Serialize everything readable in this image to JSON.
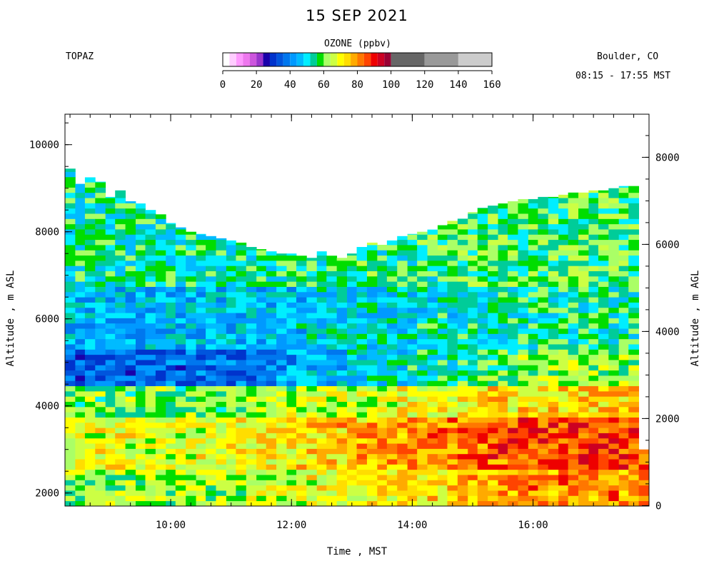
{
  "header": {
    "title": "15 SEP 2021",
    "station": "TOPAZ",
    "location": "Boulder, CO",
    "time_range": "08:15 - 17:55 MST"
  },
  "colorbar": {
    "title": "OZONE (ppbv)",
    "ticks": [
      "0",
      "20",
      "40",
      "60",
      "80",
      "100",
      "120",
      "140",
      "160"
    ],
    "segments": [
      {
        "from": 0,
        "to": 4,
        "color": "#ffffff"
      },
      {
        "from": 4,
        "to": 8,
        "color": "#ffccff"
      },
      {
        "from": 8,
        "to": 12,
        "color": "#ff99ff"
      },
      {
        "from": 12,
        "to": 16,
        "color": "#ee77ee"
      },
      {
        "from": 16,
        "to": 20,
        "color": "#cc55dd"
      },
      {
        "from": 20,
        "to": 24,
        "color": "#9933cc"
      },
      {
        "from": 24,
        "to": 28,
        "color": "#1a00aa"
      },
      {
        "from": 28,
        "to": 32,
        "color": "#0033cc"
      },
      {
        "from": 32,
        "to": 36,
        "color": "#0055dd"
      },
      {
        "from": 36,
        "to": 40,
        "color": "#0077ee"
      },
      {
        "from": 40,
        "to": 44,
        "color": "#0099ff"
      },
      {
        "from": 44,
        "to": 48,
        "color": "#00bbff"
      },
      {
        "from": 48,
        "to": 52,
        "color": "#00eeff"
      },
      {
        "from": 52,
        "to": 56,
        "color": "#00cc99"
      },
      {
        "from": 56,
        "to": 60,
        "color": "#00dd00"
      },
      {
        "from": 60,
        "to": 64,
        "color": "#aaff66"
      },
      {
        "from": 64,
        "to": 68,
        "color": "#ccff44"
      },
      {
        "from": 68,
        "to": 72,
        "color": "#ffff00"
      },
      {
        "from": 72,
        "to": 76,
        "color": "#ffdd00"
      },
      {
        "from": 76,
        "to": 80,
        "color": "#ffaa00"
      },
      {
        "from": 80,
        "to": 84,
        "color": "#ff7700"
      },
      {
        "from": 84,
        "to": 88,
        "color": "#ff4400"
      },
      {
        "from": 88,
        "to": 92,
        "color": "#ee0000"
      },
      {
        "from": 92,
        "to": 96,
        "color": "#cc0022"
      },
      {
        "from": 96,
        "to": 100,
        "color": "#990033"
      },
      {
        "from": 100,
        "to": 120,
        "color": "#666666"
      },
      {
        "from": 120,
        "to": 140,
        "color": "#999999"
      },
      {
        "from": 140,
        "to": 160,
        "color": "#cccccc"
      }
    ]
  },
  "chart_data": {
    "type": "heatmap",
    "xlabel": "Time , MST",
    "ylabel_left": "Altitude , m ASL",
    "ylabel_right": "Altitude , m AGL",
    "x_range_hours": [
      8.25,
      17.92
    ],
    "y_left_range_m": [
      1700,
      10700
    ],
    "y_right_range_m": [
      -10,
      8990
    ],
    "x_ticks": [
      {
        "value": 10,
        "label": "10:00"
      },
      {
        "value": 12,
        "label": "12:00"
      },
      {
        "value": 14,
        "label": "14:00"
      },
      {
        "value": 16,
        "label": "16:00"
      }
    ],
    "y_left_ticks": [
      {
        "value": 2000,
        "label": "2000"
      },
      {
        "value": 4000,
        "label": "4000"
      },
      {
        "value": 6000,
        "label": "6000"
      },
      {
        "value": 8000,
        "label": "8000"
      },
      {
        "value": 10000,
        "label": "10000"
      }
    ],
    "y_right_ticks": [
      {
        "value": 0,
        "label": "0"
      },
      {
        "value": 2000,
        "label": "2000"
      },
      {
        "value": 4000,
        "label": "4000"
      },
      {
        "value": 6000,
        "label": "6000"
      },
      {
        "value": 8000,
        "label": "8000"
      }
    ],
    "profile_times_hours": [
      8.25,
      8.42,
      8.58,
      8.75,
      8.92,
      9.08,
      9.25,
      9.42,
      9.58,
      9.75,
      9.92,
      10.08,
      10.25,
      10.42,
      10.58,
      10.75,
      10.92,
      11.08,
      11.25,
      11.42,
      11.58,
      11.75,
      11.92,
      12.08,
      12.25,
      12.42,
      12.58,
      12.75,
      12.92,
      13.08,
      13.25,
      13.42,
      13.58,
      13.75,
      13.92,
      14.08,
      14.25,
      14.42,
      14.58,
      14.75,
      14.92,
      15.08,
      15.25,
      15.42,
      15.58,
      15.75,
      15.92,
      16.08,
      16.25,
      16.42,
      16.58,
      16.75,
      16.92,
      17.08,
      17.25,
      17.42,
      17.58,
      17.75
    ],
    "profile_top_altitude_m": [
      9450,
      9100,
      9250,
      9150,
      8800,
      8950,
      8700,
      8650,
      8500,
      8400,
      8200,
      8100,
      8000,
      7950,
      7900,
      7850,
      7800,
      7750,
      7650,
      7600,
      7550,
      7500,
      7500,
      7450,
      7400,
      7550,
      7450,
      7400,
      7500,
      7650,
      7750,
      7700,
      7800,
      7900,
      7950,
      8000,
      8050,
      8150,
      8250,
      8300,
      8450,
      8550,
      8600,
      8650,
      8700,
      8750,
      8750,
      8800,
      8800,
      8850,
      8900,
      8900,
      8950,
      8950,
      9000,
      9050,
      9050,
      3000
    ],
    "profile_bottom_altitude_m": 1700,
    "ozone_ppbv_bands": [
      {
        "altitude_m": [
          1700,
          2500
        ],
        "ozone_ppbv_0815_1200": 62,
        "ozone_ppbv_1200_1755": 80
      },
      {
        "altitude_m": [
          2500,
          3800
        ],
        "ozone_ppbv_0815_1200": 68,
        "ozone_ppbv_1200_1755": 86
      },
      {
        "altitude_m": [
          3800,
          4500
        ],
        "ozone_ppbv_0815_1200": 60,
        "ozone_ppbv_1200_1755": 74
      },
      {
        "altitude_m": [
          4500,
          5300
        ],
        "ozone_ppbv_0815_1200": 36,
        "ozone_ppbv_1200_1755": 62
      },
      {
        "altitude_m": [
          5300,
          6800
        ],
        "ozone_ppbv_0815_1200": 46,
        "ozone_ppbv_1200_1755": 54
      },
      {
        "altitude_m": [
          6800,
          9500
        ],
        "ozone_ppbv_0815_1200": 54,
        "ozone_ppbv_1200_1755": 58
      }
    ],
    "colorbar_range_ppbv": [
      0,
      160
    ]
  }
}
